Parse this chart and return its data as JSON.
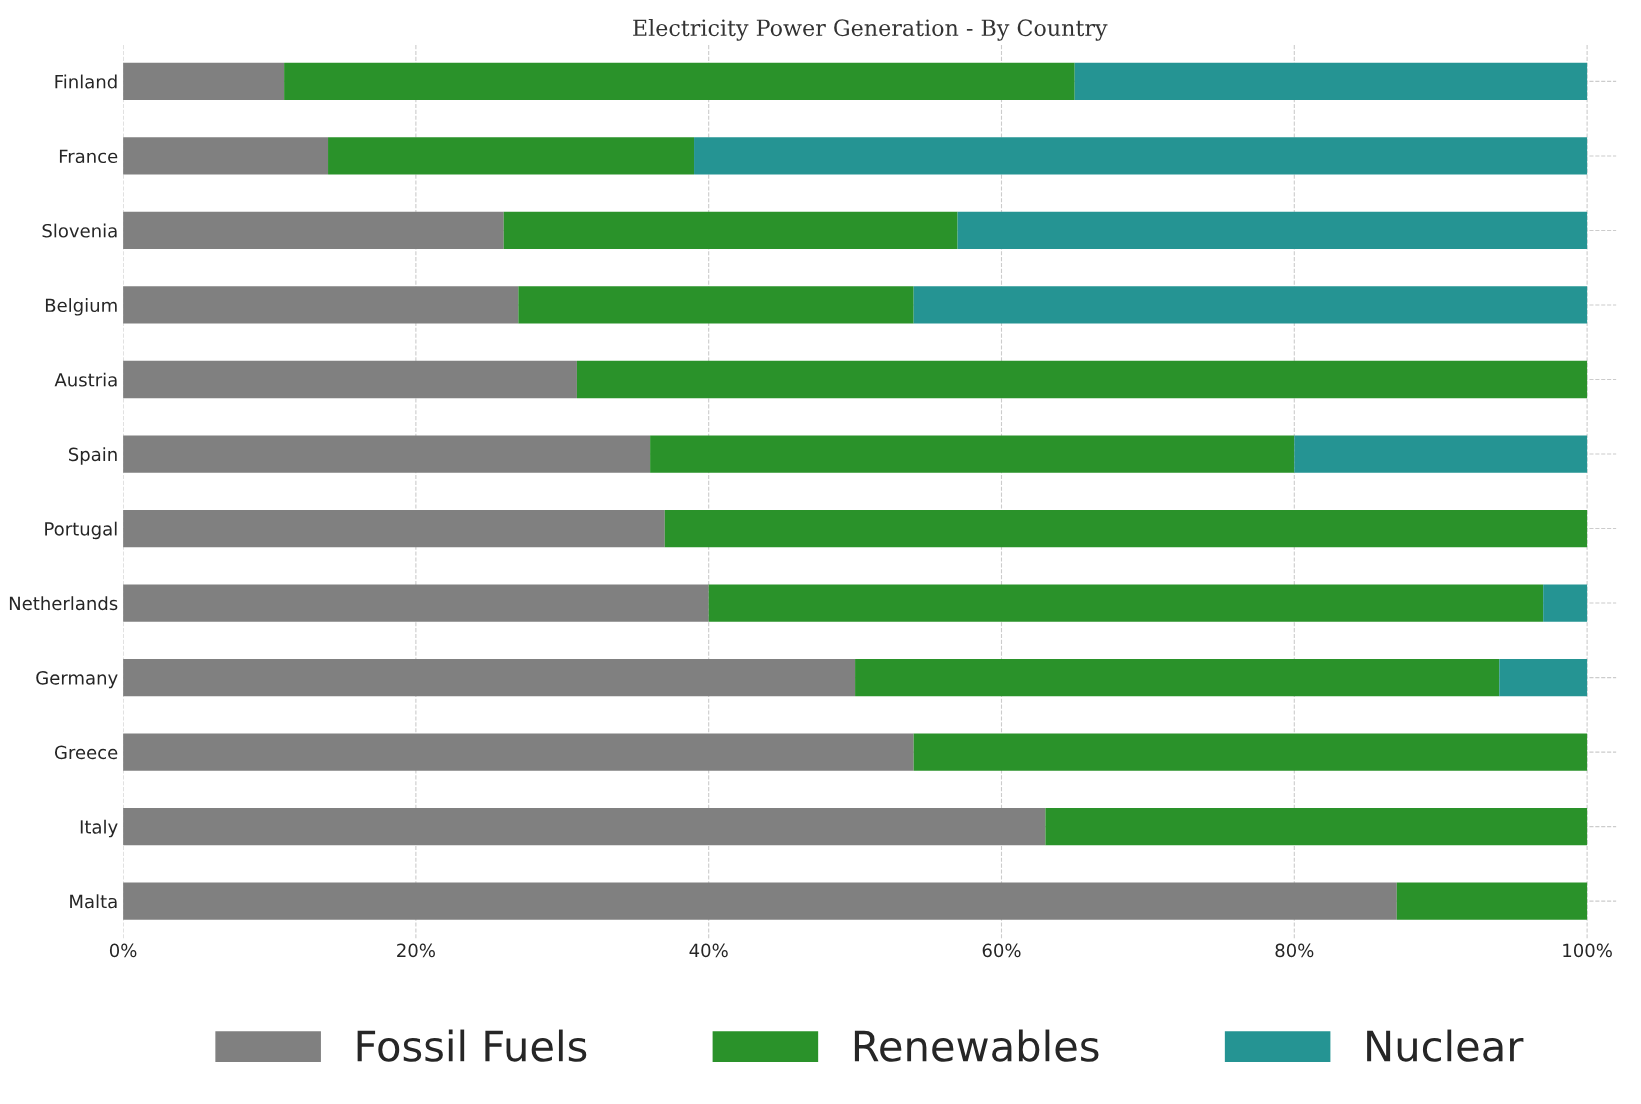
{
  "chart_data": {
    "type": "bar",
    "orientation": "horizontal",
    "stacked": true,
    "title": "Electricity Power Generation - By Country",
    "categories": [
      "Finland",
      "France",
      "Slovenia",
      "Belgium",
      "Austria",
      "Spain",
      "Portugal",
      "Netherlands",
      "Germany",
      "Greece",
      "Italy",
      "Malta"
    ],
    "series": [
      {
        "name": "Fossil Fuels",
        "color": "#808080",
        "values": [
          11,
          14,
          26,
          27,
          31,
          36,
          37,
          40,
          50,
          54,
          63,
          87
        ]
      },
      {
        "name": "Renewables",
        "color": "#2a922a",
        "values": [
          54,
          25,
          31,
          27,
          69,
          44,
          63,
          57,
          44,
          46,
          37,
          13
        ]
      },
      {
        "name": "Nuclear",
        "color": "#259493",
        "values": [
          35,
          61,
          43,
          46,
          null,
          20,
          null,
          3,
          6,
          null,
          null,
          null
        ]
      }
    ],
    "xlim": [
      0,
      102
    ],
    "xticks": [
      {
        "value": 0,
        "label": "0%"
      },
      {
        "value": 20,
        "label": "20%"
      },
      {
        "value": 40,
        "label": "40%"
      },
      {
        "value": 60,
        "label": "60%"
      },
      {
        "value": 80,
        "label": "80%"
      },
      {
        "value": 100,
        "label": "100%"
      }
    ],
    "grid": true,
    "legend": "bottom"
  }
}
